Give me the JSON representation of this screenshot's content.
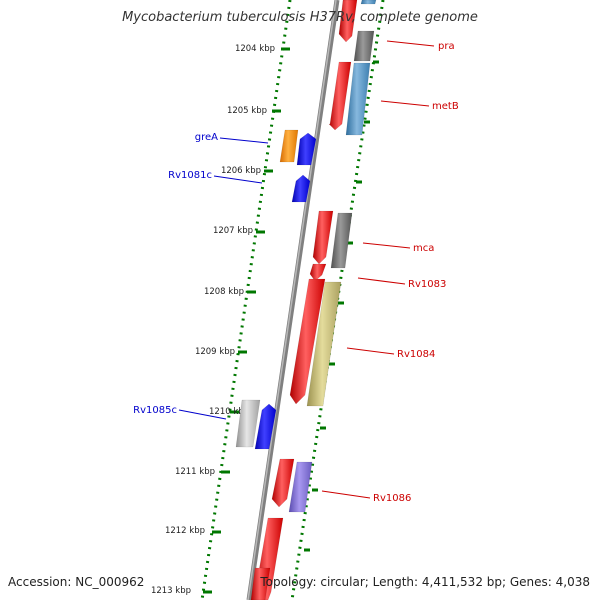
{
  "title": "Mycobacterium tuberculosis H37Rv, complete genome",
  "footer": {
    "accession": "Accession: NC_000962",
    "summary": "Topology: circular; Length: 4,411,532 bp; Genes: 4,038"
  },
  "scale": {
    "unit": "kbp",
    "ticks": [
      "1204 kbp",
      "1205 kbp",
      "1206 kbp",
      "1207 kbp",
      "1208 kbp",
      "1209 kbp",
      "1210 kbp",
      "1211 kbp",
      "1212 kbp",
      "1213 kbp"
    ]
  },
  "gene_labels": [
    {
      "name": "pra",
      "side": "right",
      "color": "#cc0000"
    },
    {
      "name": "metB",
      "side": "right",
      "color": "#cc0000"
    },
    {
      "name": "greA",
      "side": "left",
      "color": "#0000cc"
    },
    {
      "name": "Rv1081c",
      "side": "left",
      "color": "#0000cc"
    },
    {
      "name": "mca",
      "side": "right",
      "color": "#cc0000"
    },
    {
      "name": "Rv1083",
      "side": "right",
      "color": "#cc0000"
    },
    {
      "name": "Rv1084",
      "side": "right",
      "color": "#cc0000"
    },
    {
      "name": "Rv1085c",
      "side": "left",
      "color": "#0000cc"
    },
    {
      "name": "Rv1086",
      "side": "right",
      "color": "#cc0000"
    }
  ],
  "colors": {
    "forward_gene": "#ff0000",
    "reverse_gene": "#0000ff",
    "backbone": "#808080",
    "tick": "#007700"
  }
}
